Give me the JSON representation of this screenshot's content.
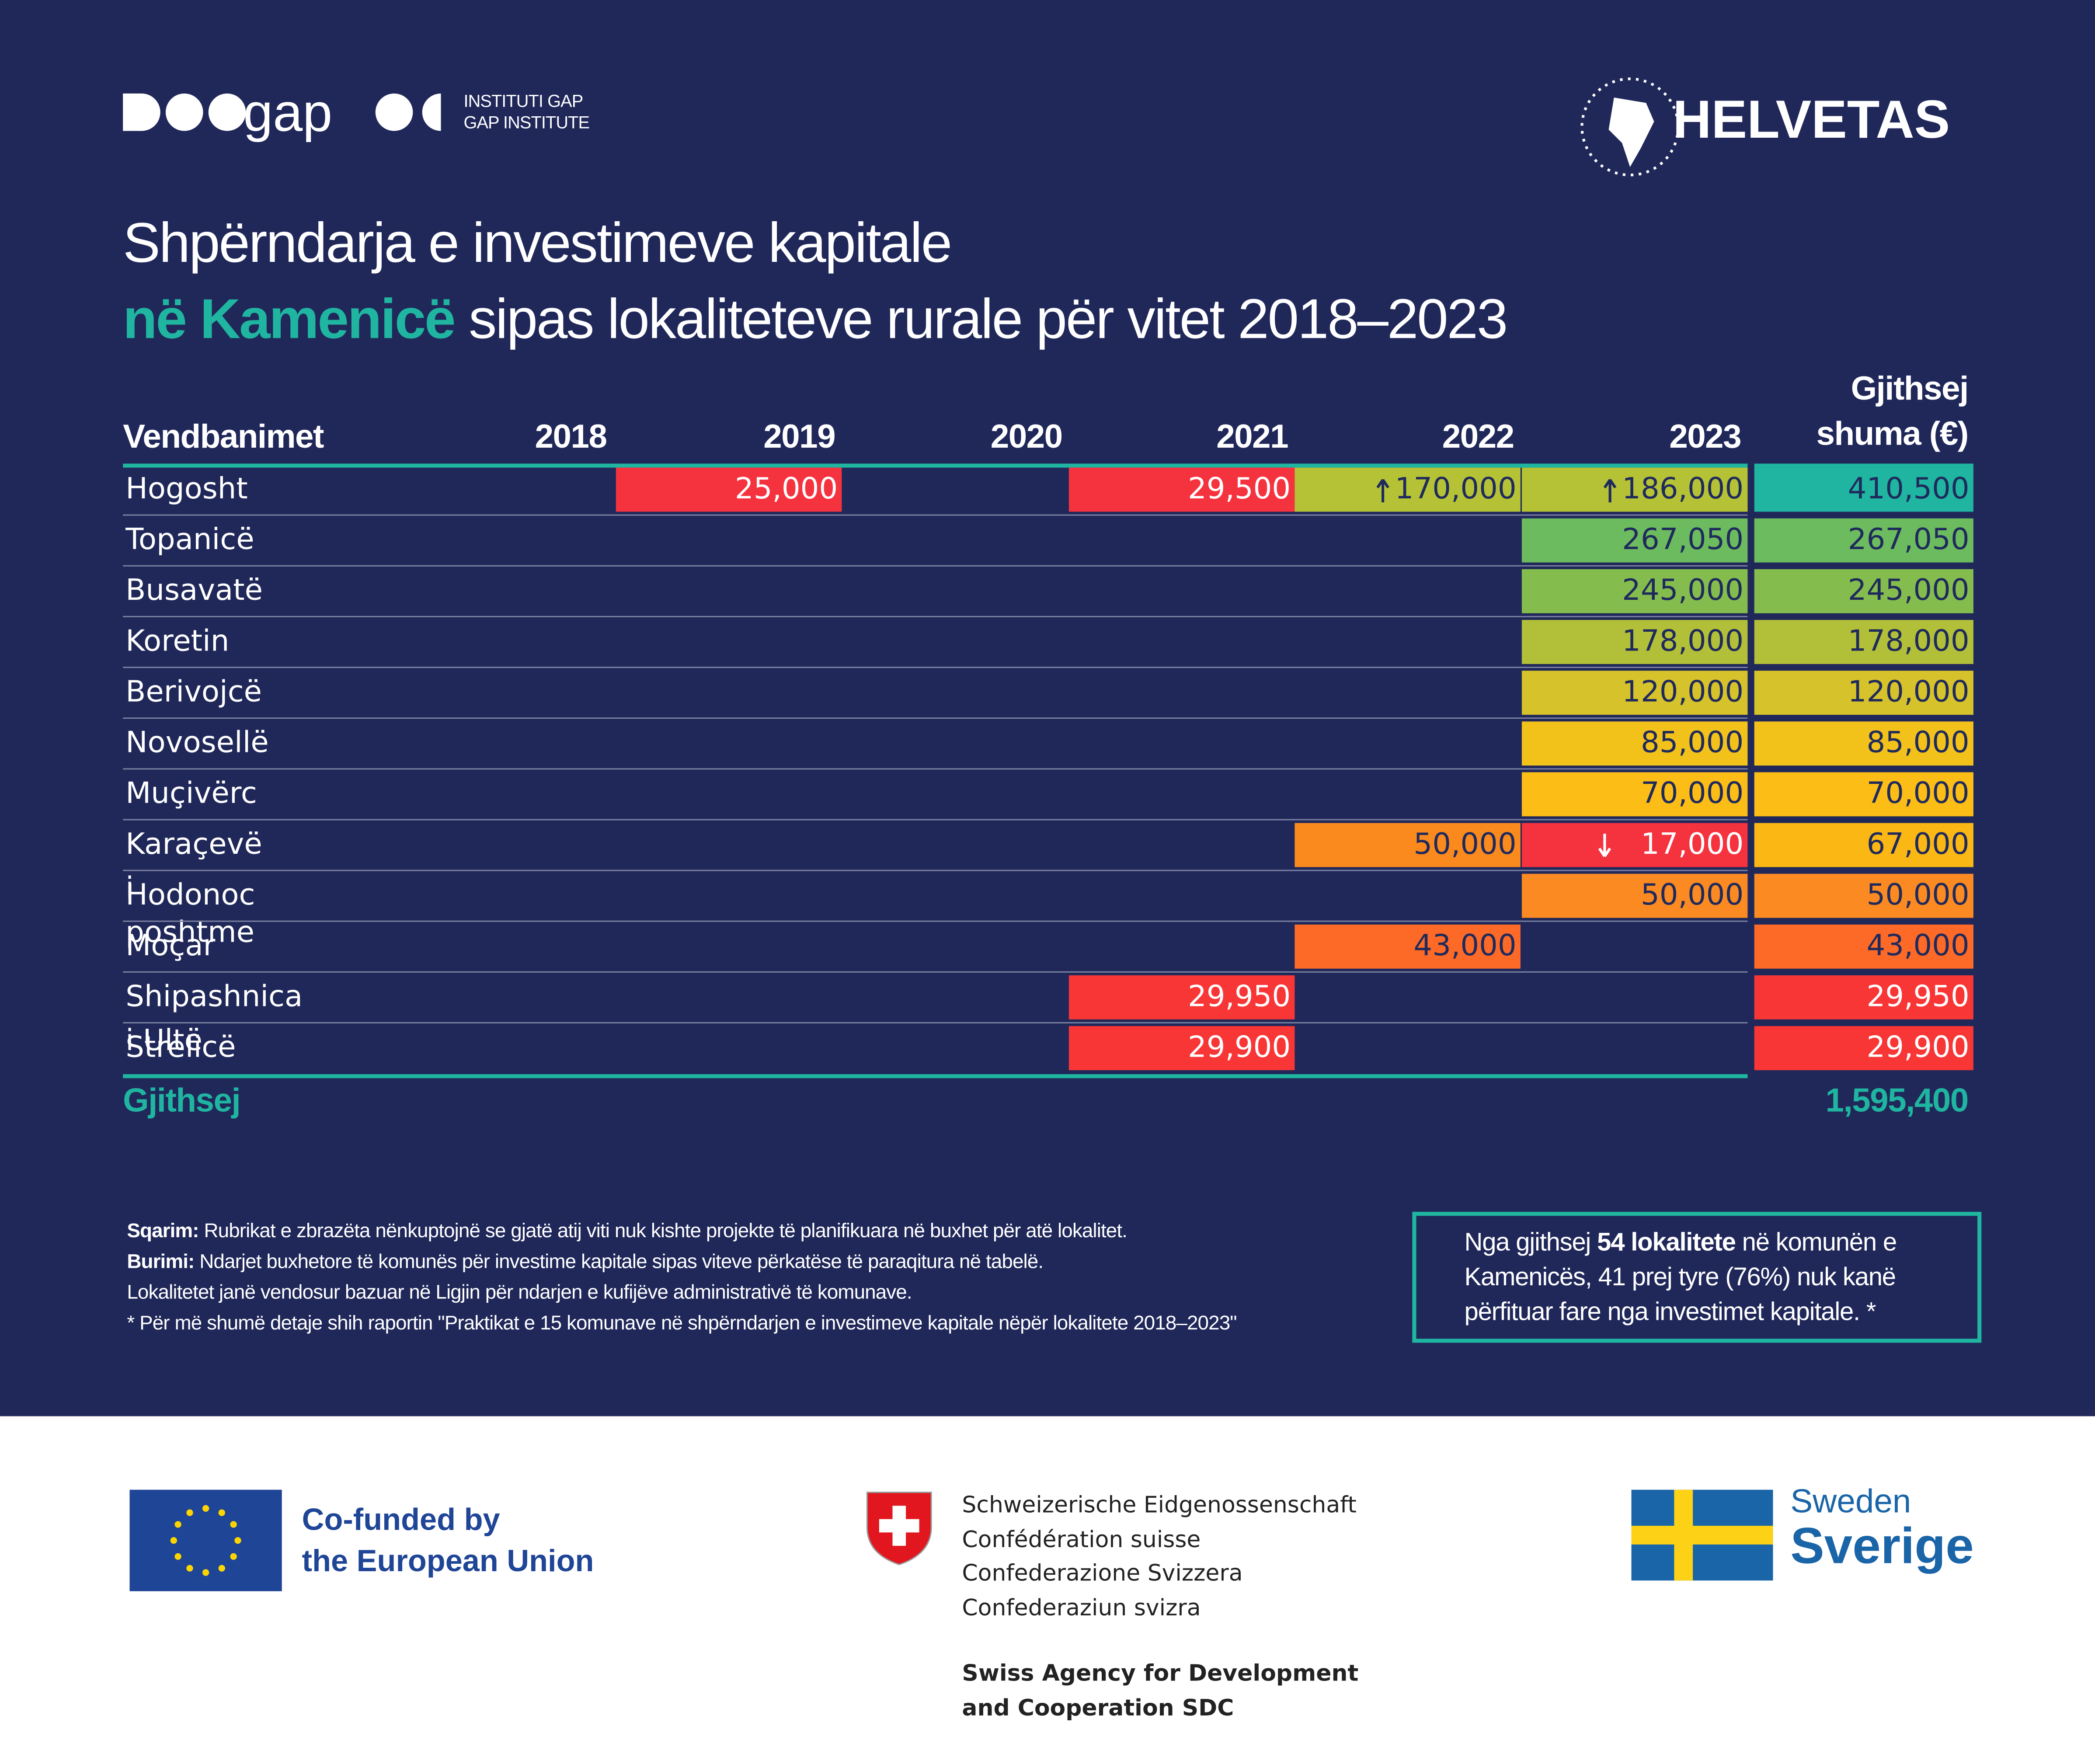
{
  "header": {
    "gap_logo_word": "gap",
    "gap_logo_lines": [
      "INSTITUTI GAP",
      "GAP INSTITUTE"
    ],
    "helvetas": "HELVETAS",
    "title_line1": "Shpërndarja e investimeve kapitale",
    "title_highlight": "në Kamenicë",
    "title_rest": "sipas lokaliteteve rurale për vitet 2018–2023"
  },
  "table": {
    "columns": [
      "Vendbanimet",
      "2018",
      "2019",
      "2020",
      "2021",
      "2022",
      "2023"
    ],
    "total_header": [
      "Gjithsej",
      "shuma (€)"
    ],
    "rows": [
      {
        "name": "Hogosht",
        "cells": [
          null,
          {
            "text": "25,000",
            "color": "#f5333f",
            "text_color": "#ffffff"
          },
          null,
          {
            "text": "29,500",
            "color": "#f5333f",
            "text_color": "#ffffff"
          },
          {
            "text": "170,000",
            "color": "#b5c236",
            "trend": "up"
          },
          {
            "text": "186,000",
            "color": "#b5c236",
            "trend": "up"
          }
        ],
        "total": {
          "text": "410,500",
          "color": "#1fb5a0"
        }
      },
      {
        "name": "Topanicë",
        "cells": [
          null,
          null,
          null,
          null,
          null,
          {
            "text": "267,050",
            "color": "#6cbb5e"
          }
        ],
        "total": {
          "text": "267,050",
          "color": "#6cbb5e"
        }
      },
      {
        "name": "Busavatë",
        "cells": [
          null,
          null,
          null,
          null,
          null,
          {
            "text": "245,000",
            "color": "#84bd4e"
          }
        ],
        "total": {
          "text": "245,000",
          "color": "#84bd4e"
        }
      },
      {
        "name": "Koretin",
        "cells": [
          null,
          null,
          null,
          null,
          null,
          {
            "text": "178,000",
            "color": "#b2bf38"
          }
        ],
        "total": {
          "text": "178,000",
          "color": "#b2bf38"
        }
      },
      {
        "name": "Berivojcë",
        "cells": [
          null,
          null,
          null,
          null,
          null,
          {
            "text": "120,000",
            "color": "#d6c22a"
          }
        ],
        "total": {
          "text": "120,000",
          "color": "#d6c22a"
        }
      },
      {
        "name": "Novosellë",
        "cells": [
          null,
          null,
          null,
          null,
          null,
          {
            "text": "85,000",
            "color": "#f2c21b"
          }
        ],
        "total": {
          "text": "85,000",
          "color": "#f2c21b"
        }
      },
      {
        "name": "Muçivërc",
        "cells": [
          null,
          null,
          null,
          null,
          null,
          {
            "text": "70,000",
            "color": "#fbbd16"
          }
        ],
        "total": {
          "text": "70,000",
          "color": "#fbbd16"
        }
      },
      {
        "name": "Karaçevë i poshtme",
        "cells": [
          null,
          null,
          null,
          null,
          {
            "text": "50,000",
            "color": "#fb8a1e"
          },
          {
            "text": "17,000",
            "color": "#f5333f",
            "text_color": "#ffffff",
            "trend": "down"
          }
        ],
        "total": {
          "text": "67,000",
          "color": "#fbb814"
        }
      },
      {
        "name": "Hodonoc",
        "cells": [
          null,
          null,
          null,
          null,
          null,
          {
            "text": "50,000",
            "color": "#fb8a22"
          }
        ],
        "total": {
          "text": "50,000",
          "color": "#fb8a22"
        }
      },
      {
        "name": "Moçar",
        "cells": [
          null,
          null,
          null,
          null,
          {
            "text": "43,000",
            "color": "#fd6a28"
          },
          null
        ],
        "total": {
          "text": "43,000",
          "color": "#fd6a28"
        }
      },
      {
        "name": "Shipashnica i Ultë",
        "cells": [
          null,
          null,
          null,
          {
            "text": "29,950",
            "color": "#f83636",
            "text_color": "#ffffff"
          },
          null,
          null
        ],
        "total": {
          "text": "29,950",
          "color": "#f83636",
          "text_color": "#ffffff"
        }
      },
      {
        "name": "Strelicë",
        "cells": [
          null,
          null,
          null,
          {
            "text": "29,900",
            "color": "#f83636",
            "text_color": "#ffffff"
          },
          null,
          null
        ],
        "total": {
          "text": "29,900",
          "color": "#f83636",
          "text_color": "#ffffff"
        }
      }
    ],
    "total_label": "Gjithsej",
    "grand_total": "1,595,400"
  },
  "notes": {
    "sqarim_label": "Sqarim:",
    "sqarim": "Rubrikat e zbrazëta nënkuptojnë se gjatë atij viti nuk kishte projekte të planifikuara në buxhet për atë lokalitet.",
    "burimi_label": "Burimi:",
    "burimi": "Ndarjet buxhetore të komunës për investime kapitale sipas viteve përkatëse të paraqitura në tabelë.",
    "line3": "Lokalitetet janë vendosur bazuar në Ligjin për ndarjen e kufijëve administrativë të komunave.",
    "line4": "* Për më shumë detaje shih raportin \"Praktikat e 15 komunave në shpërndarjen e investimeve kapitale nëpër lokalitete 2018–2023\""
  },
  "callout": {
    "before": "Nga gjithsej ",
    "bold": "54 lokalitete",
    "after": " në komunën e Kamenicës, 41 prej tyre (76%) nuk kanë përfituar fare nga investimet kapitale. *"
  },
  "footer": {
    "eu": [
      "Co-funded by",
      "the European Union"
    ],
    "swiss": [
      "Schweizerische Eidgenossenschaft",
      "Confédération suisse",
      "Confederazione Svizzera",
      "Confederaziun svizra"
    ],
    "sdc": [
      "Swiss Agency for Development",
      "and Cooperation SDC"
    ],
    "sweden": [
      "Sweden",
      "Sverige"
    ]
  }
}
